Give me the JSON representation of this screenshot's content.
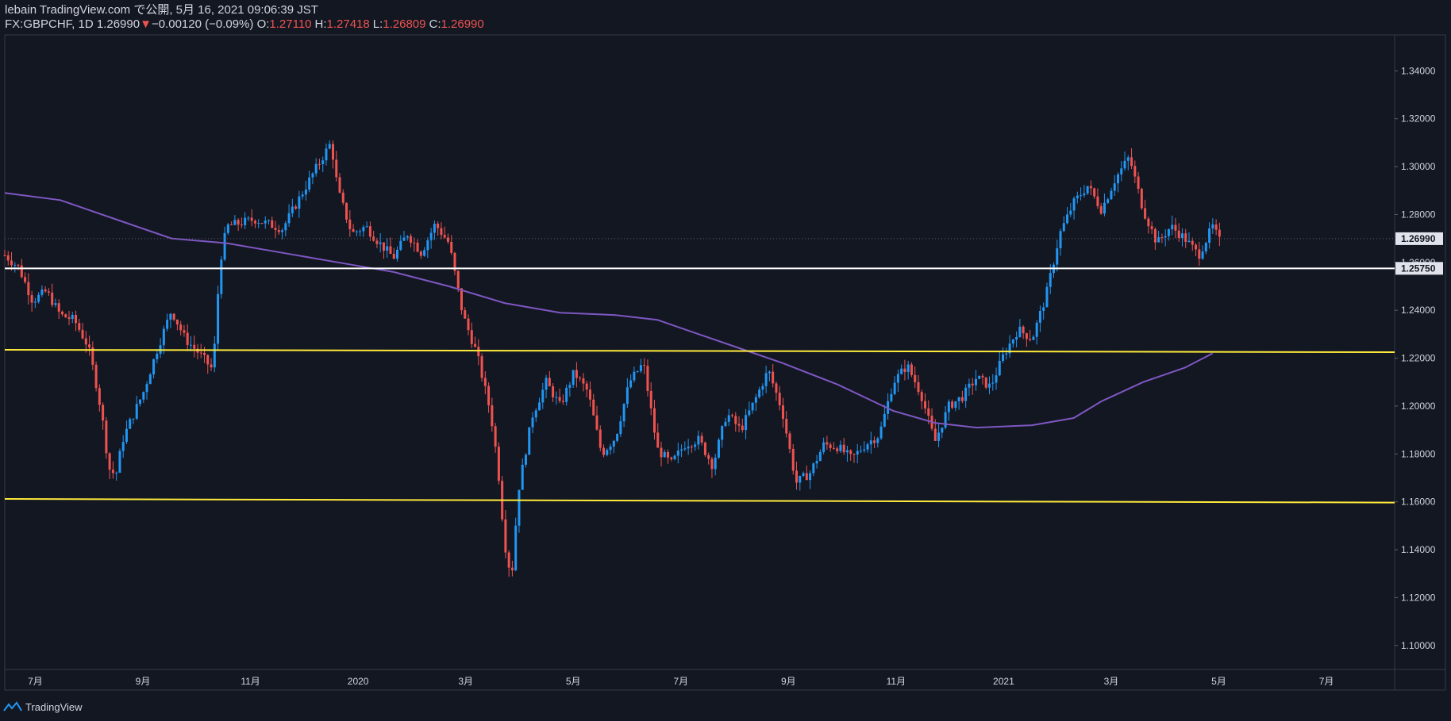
{
  "header": {
    "publish_line": "lebain TradingView.com で公開, 5月 16, 2021 09:06:39 JST",
    "symbol": "FX:GBPCHF, 1D",
    "last_price": "1.26990",
    "change_arrow": "▼",
    "change": "−0.00120 (−0.09%)",
    "open_label": "O:",
    "open": "1.27110",
    "high_label": "H:",
    "high": "1.27418",
    "low_label": "L:",
    "low": "1.26809",
    "close_label": "C:",
    "close": "1.26990"
  },
  "footer": {
    "brand": "TradingView"
  },
  "colors": {
    "background": "#131722",
    "up_candle": "#2196f3",
    "down_candle": "#ef5350",
    "moving_average": "#7e57c2",
    "support_line_yellow": "#ffeb3b",
    "support_line_white": "#ffffff",
    "price_badge_bg": "#e0e3eb",
    "axis_text": "#d1d4dc"
  },
  "chart_data": {
    "type": "candlestick",
    "symbol": "GBPCHF",
    "interval": "1D",
    "ylim": [
      1.09,
      1.355
    ],
    "y_ticks": [
      "1.34000",
      "1.32000",
      "1.30000",
      "1.28000",
      "1.26000",
      "1.24000",
      "1.22000",
      "1.20000",
      "1.18000",
      "1.16000",
      "1.14000",
      "1.12000",
      "1.10000"
    ],
    "x_tick_labels": [
      "7月",
      "9月",
      "11月",
      "2020",
      "3月",
      "5月",
      "7月",
      "9月",
      "11月",
      "2021",
      "3月",
      "5月",
      "7月"
    ],
    "price_labels": {
      "last": "1.26990",
      "white_line": "1.25750"
    },
    "horizontal_lines": [
      {
        "color": "white",
        "start": 1.2575,
        "end": 1.2575
      },
      {
        "color": "yellow",
        "start": 1.2235,
        "end": 1.2225
      },
      {
        "color": "yellow",
        "start": 1.1612,
        "end": 1.1597
      }
    ],
    "moving_average_path": [
      [
        0,
        1.289
      ],
      [
        0.04,
        1.286
      ],
      [
        0.08,
        1.278
      ],
      [
        0.12,
        1.27
      ],
      [
        0.16,
        1.268
      ],
      [
        0.2,
        1.264
      ],
      [
        0.24,
        1.26
      ],
      [
        0.28,
        1.256
      ],
      [
        0.32,
        1.25
      ],
      [
        0.36,
        1.243
      ],
      [
        0.4,
        1.239
      ],
      [
        0.44,
        1.238
      ],
      [
        0.47,
        1.236
      ],
      [
        0.5,
        1.23
      ],
      [
        0.53,
        1.224
      ],
      [
        0.56,
        1.218
      ],
      [
        0.6,
        1.209
      ],
      [
        0.64,
        1.198
      ],
      [
        0.67,
        1.193
      ],
      [
        0.7,
        1.191
      ],
      [
        0.74,
        1.192
      ],
      [
        0.77,
        1.195
      ],
      [
        0.79,
        1.202
      ],
      [
        0.82,
        1.21
      ],
      [
        0.85,
        1.216
      ],
      [
        0.87,
        1.222
      ]
    ],
    "price_path": [
      [
        0.0,
        1.263
      ],
      [
        0.01,
        1.258
      ],
      [
        0.02,
        1.244
      ],
      [
        0.03,
        1.248
      ],
      [
        0.04,
        1.238
      ],
      [
        0.05,
        1.236
      ],
      [
        0.06,
        1.225
      ],
      [
        0.065,
        1.212
      ],
      [
        0.07,
        1.196
      ],
      [
        0.075,
        1.174
      ],
      [
        0.08,
        1.171
      ],
      [
        0.085,
        1.186
      ],
      [
        0.09,
        1.193
      ],
      [
        0.1,
        1.206
      ],
      [
        0.11,
        1.224
      ],
      [
        0.12,
        1.24
      ],
      [
        0.13,
        1.228
      ],
      [
        0.14,
        1.222
      ],
      [
        0.15,
        1.215
      ],
      [
        0.155,
        1.26
      ],
      [
        0.16,
        1.275
      ],
      [
        0.18,
        1.278
      ],
      [
        0.2,
        1.274
      ],
      [
        0.22,
        1.295
      ],
      [
        0.235,
        1.31
      ],
      [
        0.24,
        1.29
      ],
      [
        0.25,
        1.272
      ],
      [
        0.26,
        1.275
      ],
      [
        0.27,
        1.268
      ],
      [
        0.28,
        1.262
      ],
      [
        0.29,
        1.272
      ],
      [
        0.3,
        1.264
      ],
      [
        0.31,
        1.276
      ],
      [
        0.32,
        1.268
      ],
      [
        0.33,
        1.238
      ],
      [
        0.34,
        1.222
      ],
      [
        0.35,
        1.197
      ],
      [
        0.355,
        1.176
      ],
      [
        0.36,
        1.143
      ],
      [
        0.365,
        1.128
      ],
      [
        0.37,
        1.165
      ],
      [
        0.38,
        1.196
      ],
      [
        0.39,
        1.21
      ],
      [
        0.4,
        1.2
      ],
      [
        0.41,
        1.214
      ],
      [
        0.42,
        1.206
      ],
      [
        0.43,
        1.18
      ],
      [
        0.44,
        1.187
      ],
      [
        0.45,
        1.21
      ],
      [
        0.46,
        1.218
      ],
      [
        0.47,
        1.182
      ],
      [
        0.48,
        1.176
      ],
      [
        0.49,
        1.184
      ],
      [
        0.5,
        1.186
      ],
      [
        0.51,
        1.175
      ],
      [
        0.52,
        1.197
      ],
      [
        0.53,
        1.19
      ],
      [
        0.54,
        1.202
      ],
      [
        0.55,
        1.215
      ],
      [
        0.56,
        1.198
      ],
      [
        0.57,
        1.168
      ],
      [
        0.58,
        1.172
      ],
      [
        0.59,
        1.184
      ],
      [
        0.6,
        1.183
      ],
      [
        0.61,
        1.178
      ],
      [
        0.62,
        1.184
      ],
      [
        0.63,
        1.188
      ],
      [
        0.64,
        1.21
      ],
      [
        0.65,
        1.217
      ],
      [
        0.66,
        1.205
      ],
      [
        0.67,
        1.185
      ],
      [
        0.68,
        1.2
      ],
      [
        0.69,
        1.204
      ],
      [
        0.7,
        1.212
      ],
      [
        0.71,
        1.208
      ],
      [
        0.72,
        1.222
      ],
      [
        0.73,
        1.232
      ],
      [
        0.74,
        1.228
      ],
      [
        0.75,
        1.246
      ],
      [
        0.76,
        1.272
      ],
      [
        0.77,
        1.285
      ],
      [
        0.78,
        1.292
      ],
      [
        0.79,
        1.282
      ],
      [
        0.8,
        1.295
      ],
      [
        0.81,
        1.304
      ],
      [
        0.82,
        1.282
      ],
      [
        0.83,
        1.268
      ],
      [
        0.84,
        1.275
      ],
      [
        0.85,
        1.27
      ],
      [
        0.86,
        1.263
      ],
      [
        0.87,
        1.275
      ],
      [
        0.875,
        1.269
      ]
    ]
  }
}
